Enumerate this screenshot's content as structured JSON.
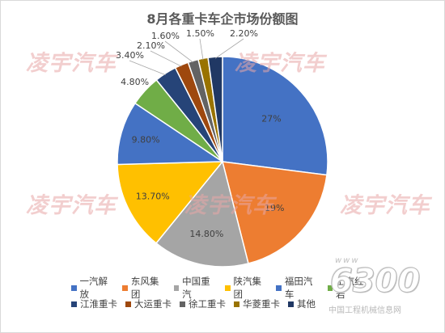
{
  "chart_data": {
    "type": "pie",
    "title": "8月各重卡车企市场份额图",
    "legend_position": "bottom",
    "categories": [
      "一汽解放",
      "东风集团",
      "中国重汽",
      "陕汽集团",
      "福田汽车",
      "上汽红岩",
      "江淮重卡",
      "大运重卡",
      "徐工重卡",
      "华菱重卡",
      "其他"
    ],
    "values": [
      27,
      19,
      14.8,
      13.7,
      9.8,
      4.8,
      3.4,
      2.1,
      1.6,
      1.5,
      2.2
    ],
    "labels": [
      "27%",
      "19%",
      "14.80%",
      "13.70%",
      "9.80%",
      "4.80%",
      "3.40%",
      "2.10%",
      "1.60%",
      "1.50%",
      "2.20%"
    ],
    "colors": [
      "#4472c4",
      "#ed7d31",
      "#a5a5a5",
      "#ffc000",
      "#4472c4",
      "#70ad47",
      "#264478",
      "#9e480e",
      "#636363",
      "#997300",
      "#203864"
    ]
  },
  "watermark": {
    "text": "凌宇汽车",
    "logo_number": "6300",
    "logo_url_text": "www",
    "logo_subtitle": "中国工程机械信息网"
  }
}
